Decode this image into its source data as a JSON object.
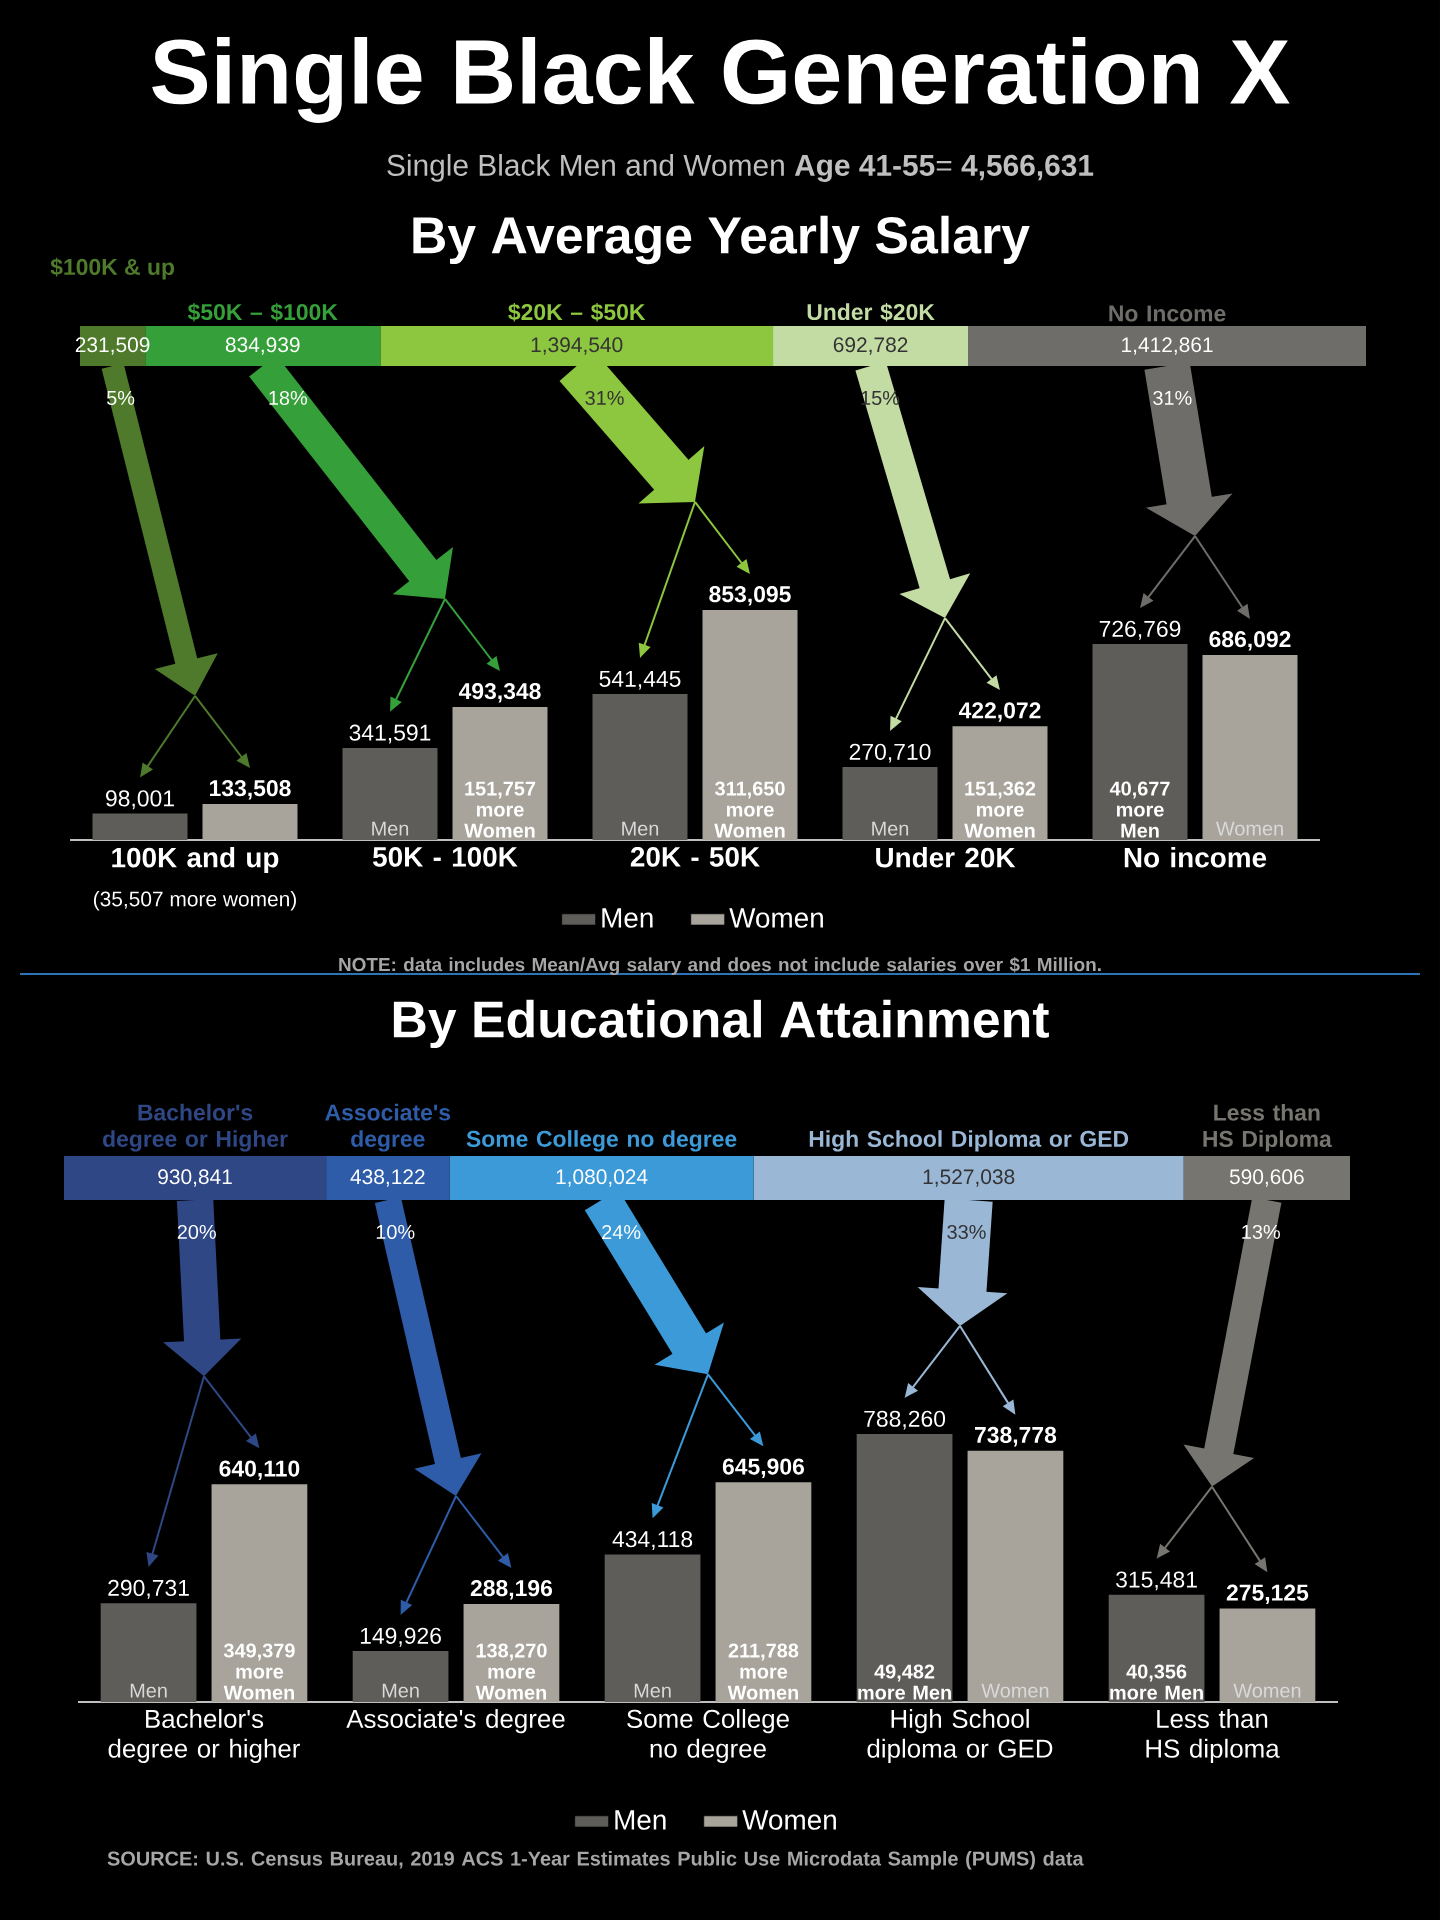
{
  "chart_data": [
    {
      "type": "bar",
      "orientation": "horizontal",
      "stacked": true,
      "title": "Single Black Generation X",
      "subtitle": "Single Black Men and Women **Age 41-55**= **4,566,631**",
      "categories": [
        null
      ],
      "series": [
        {
          "name": "$100K & up",
          "color": "#4f7a2b",
          "values": [
            231509
          ],
          "value_labels": [
            "231,509"
          ]
        },
        {
          "name": "$50K – $100K",
          "color": "#35a03a",
          "values": [
            834939
          ],
          "value_labels": [
            "834,939"
          ]
        },
        {
          "name": "$20K – $50K",
          "color": "#8dc63f",
          "values": [
            1394540
          ],
          "value_labels": [
            "1,394,540"
          ]
        },
        {
          "name": "Under $20K",
          "color": "#c3dca3",
          "values": [
            692782
          ],
          "value_labels": [
            "692,782"
          ]
        },
        {
          "name": "No Income",
          "color": "#6f6d69",
          "values": [
            1412861
          ],
          "value_labels": [
            "1,412,861"
          ]
        }
      ],
      "annotations": [
        "5%",
        "18%",
        "31%",
        "15%",
        "31%",
        "By Average Yearly Salary"
      ]
    },
    {
      "type": "bar",
      "categories": [
        "100K and up",
        "50K - 100K",
        "20K - 50K",
        "Under 20K",
        "No income"
      ],
      "series": [
        {
          "name": "Men",
          "color": "#5f5d59",
          "values": [
            98001,
            341591,
            541445,
            270710,
            726769
          ],
          "value_labels": [
            "98,001",
            "341,591",
            "541,445",
            "270,710",
            "726,769"
          ]
        },
        {
          "name": "Women",
          "color": "#a8a49c",
          "values": [
            133508,
            493348,
            853095,
            422072,
            686092
          ],
          "value_labels": [
            "133,508",
            "493,348",
            "853,095",
            "422,072",
            "686,092"
          ]
        }
      ],
      "legend": "bottom",
      "annotations": [
        "(35,507 more women)",
        "151,757 more Women",
        "311,650 more Women",
        "151,362 more Women",
        "40,677 more Men",
        "NOTE: data includes Mean/Avg salary and does not include salaries over $1 Million."
      ]
    },
    {
      "type": "bar",
      "orientation": "horizontal",
      "stacked": true,
      "title": "By Educational Attainment",
      "categories": [
        null
      ],
      "series": [
        {
          "name": "Bachelor's degree or Higher",
          "color": "#2f4785",
          "values": [
            930841
          ],
          "value_labels": [
            "930,841"
          ]
        },
        {
          "name": "Associate's degree",
          "color": "#2e5ca8",
          "values": [
            438122
          ],
          "value_labels": [
            "438,122"
          ]
        },
        {
          "name": "Some College no degree",
          "color": "#3c9ad9",
          "values": [
            1080024
          ],
          "value_labels": [
            "1,080,024"
          ]
        },
        {
          "name": "High School Diploma or GED",
          "color": "#9ab7d6",
          "values": [
            1527038
          ],
          "value_labels": [
            "1,527,038"
          ]
        },
        {
          "name": "Less than HS Diploma",
          "color": "#77756f",
          "values": [
            590606
          ],
          "value_labels": [
            "590,606"
          ]
        }
      ],
      "annotations": [
        "20%",
        "10%",
        "24%",
        "33%",
        "13%"
      ]
    },
    {
      "type": "bar",
      "categories": [
        "Bachelor's degree or higher",
        "Associate's degree",
        "Some College no degree",
        "High School diploma or GED",
        "Less than HS diploma"
      ],
      "series": [
        {
          "name": "Men",
          "color": "#5f5d59",
          "values": [
            290731,
            149926,
            434118,
            788260,
            315481
          ],
          "value_labels": [
            "290,731",
            "149,926",
            "434,118",
            "788,260",
            "315,481"
          ]
        },
        {
          "name": "Women",
          "color": "#a8a49c",
          "values": [
            640110,
            288196,
            645906,
            738778,
            275125
          ],
          "value_labels": [
            "640,110",
            "288,196",
            "645,906",
            "738,778",
            "275,125"
          ]
        }
      ],
      "legend": "bottom",
      "annotations": [
        "349,379 more Women",
        "138,270 more Women",
        "211,788 more Women",
        "49,482 more Men",
        "40,356 more Men",
        "SOURCE: U.S. Census Bureau, 2019 ACS 1-Year Estimates Public Use Microdata Sample (PUMS) data"
      ]
    }
  ]
}
